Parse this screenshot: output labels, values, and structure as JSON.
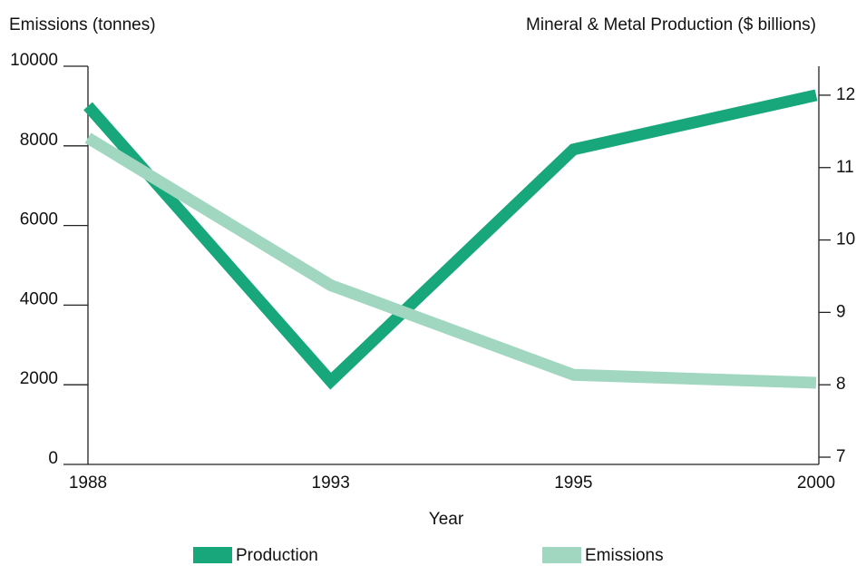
{
  "chart_data": {
    "type": "line",
    "ylabel": "Emissions (tonnes)",
    "y2label": "Mineral & Metal Production ($ billions)",
    "xlabel": "Year",
    "categories": [
      "1988",
      "1993",
      "1995",
      "2000"
    ],
    "ylim": [
      0,
      10000
    ],
    "yticks": [
      0,
      2000,
      4000,
      6000,
      8000,
      10000
    ],
    "y2lim": [
      6.9,
      12.4
    ],
    "y2ticks": [
      7,
      8,
      9,
      10,
      11,
      12
    ],
    "series": [
      {
        "name": "Production",
        "color": "#17a77b",
        "axis": "y2",
        "values": [
          11.85,
          8.05,
          11.25,
          12.0
        ]
      },
      {
        "name": "Emissions",
        "color": "#a1d7c0",
        "axis": "y",
        "values": [
          8200,
          4500,
          2250,
          2050
        ]
      }
    ]
  }
}
